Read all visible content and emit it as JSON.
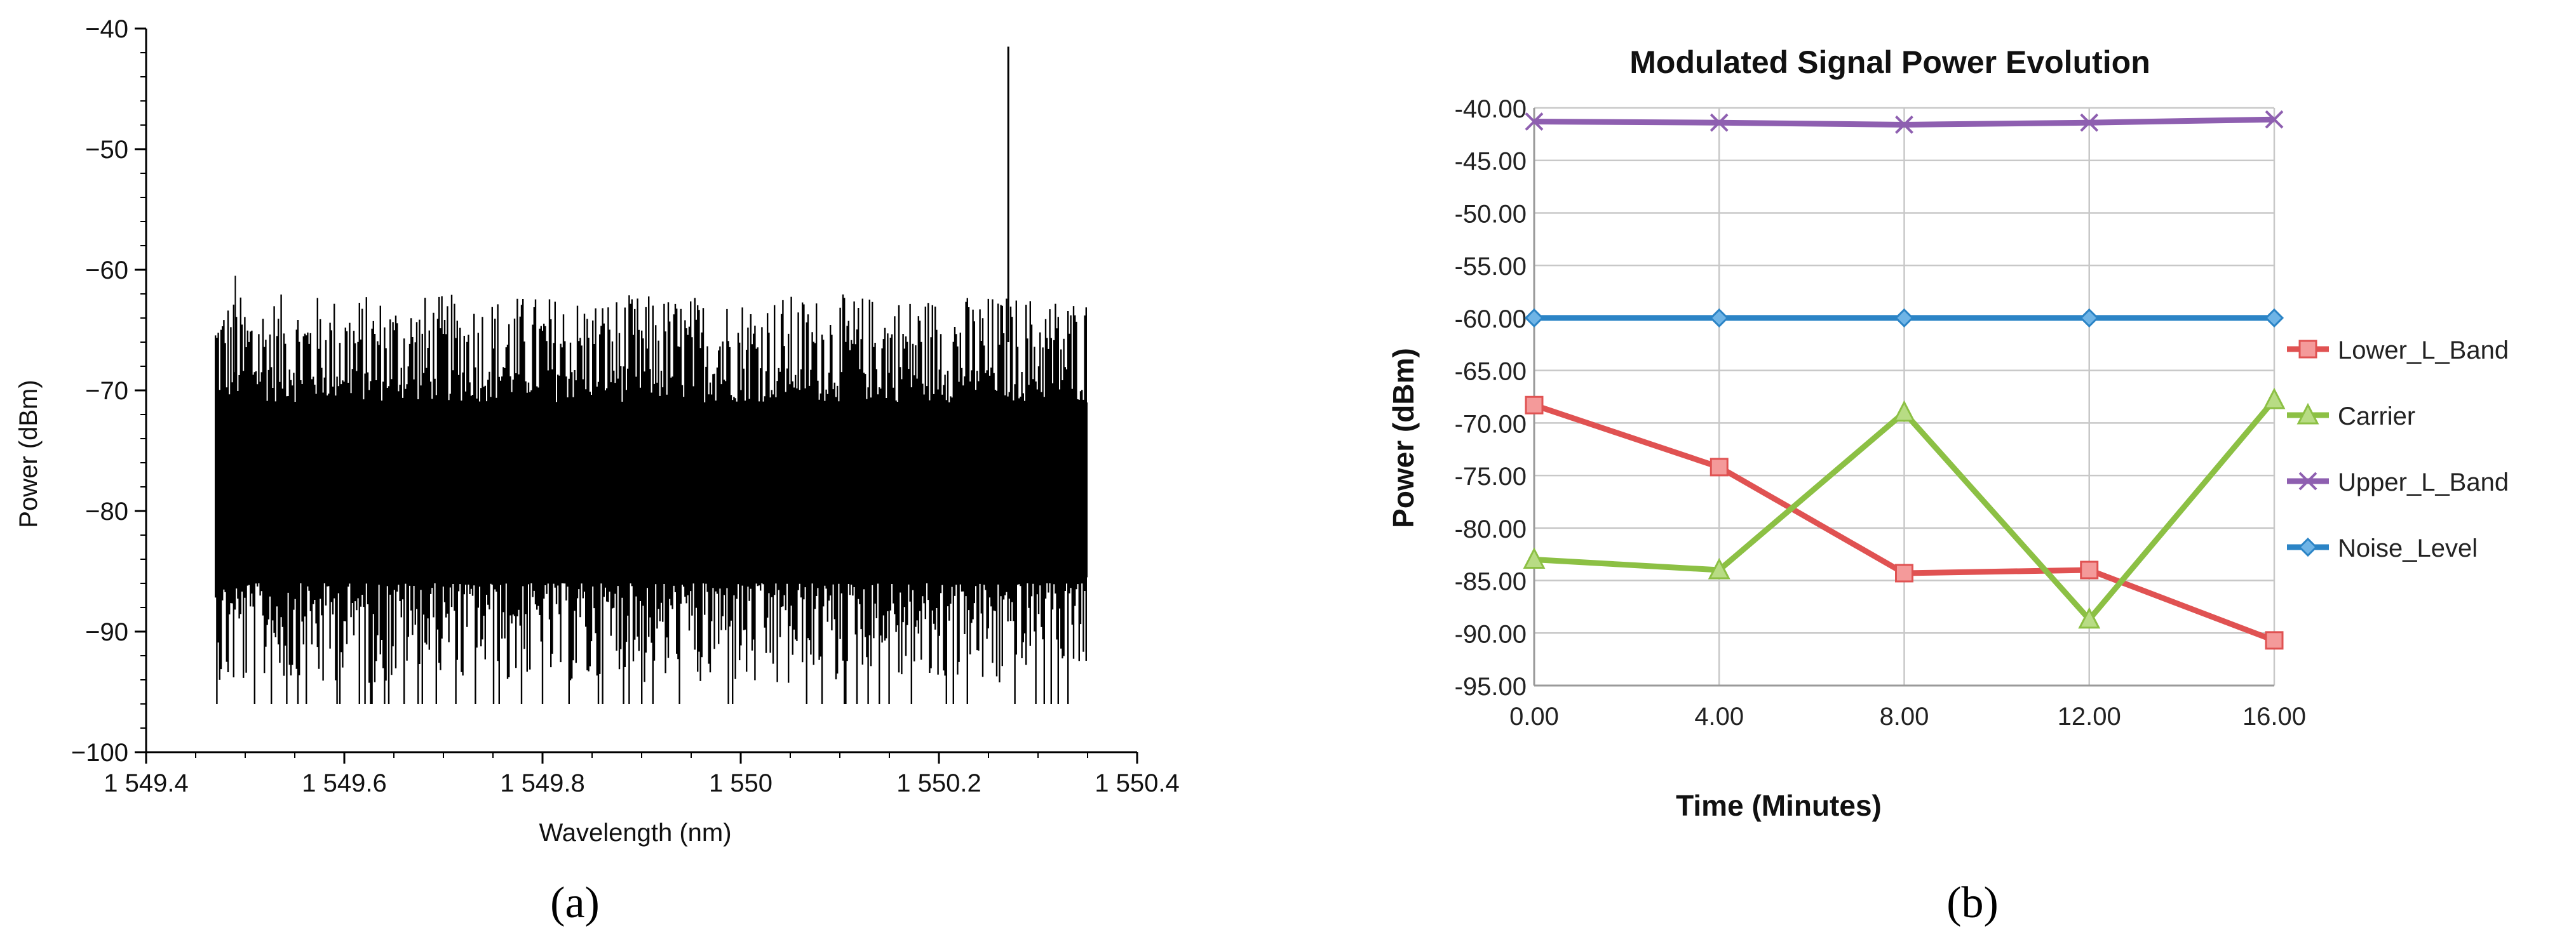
{
  "panels": [
    {
      "caption": "(a)"
    },
    {
      "caption": "(b)"
    }
  ],
  "chart_data": [
    {
      "type": "line",
      "title": "",
      "xlabel": "Wavelength (nm)",
      "ylabel": "Power (dBm)",
      "xlim": [
        1549.4,
        1550.4
      ],
      "ylim": [
        -100,
        -40
      ],
      "x_ticks": [
        1549.4,
        1549.6,
        1549.8,
        1550.0,
        1550.2,
        1550.4
      ],
      "x_tick_labels": [
        "1 549.4",
        "1 549.6",
        "1 549.8",
        "1 550",
        "1 550.2",
        "1 550.4"
      ],
      "y_ticks": [
        -100,
        -90,
        -80,
        -70,
        -60,
        -50,
        -40
      ],
      "y_tick_labels": [
        "−100",
        "−90",
        "−80",
        "−70",
        "−60",
        "−50",
        "−40"
      ],
      "grid": false,
      "legend": "none",
      "color": "#000000",
      "spectrum": {
        "x_start": 1549.47,
        "x_end": 1550.35,
        "upper_envelope_typical": -66,
        "upper_envelope_max": -62,
        "lower_envelope_typical": -88,
        "lower_envelope_min": -96,
        "peak": {
          "x": 1550.27,
          "y": -41.5
        }
      }
    },
    {
      "type": "line",
      "title": "Modulated Signal Power Evolution",
      "xlabel": "Time (Minutes)",
      "ylabel": "Power (dBm)",
      "x": [
        0,
        4,
        8,
        12,
        16
      ],
      "x_tick_labels": [
        "0.00",
        "4.00",
        "8.00",
        "12.00",
        "16.00"
      ],
      "xlim": [
        0,
        16
      ],
      "ylim": [
        -95,
        -40
      ],
      "y_ticks": [
        -95,
        -90,
        -85,
        -80,
        -75,
        -70,
        -65,
        -60,
        -55,
        -50,
        -45,
        -40
      ],
      "y_tick_labels": [
        "-95.00",
        "-90.00",
        "-85.00",
        "-80.00",
        "-75.00",
        "-70.00",
        "-65.00",
        "-60.00",
        "-55.00",
        "-50.00",
        "-45.00",
        "-40.00"
      ],
      "grid": true,
      "legend": "right",
      "series": [
        {
          "name": "Lower_L_Band",
          "values": [
            -68.3,
            -74.2,
            -84.3,
            -84.0,
            -90.7
          ],
          "color": "#e05252",
          "marker": "square"
        },
        {
          "name": "Carrier",
          "values": [
            -83.0,
            -84.0,
            -69.0,
            -88.7,
            -67.8
          ],
          "color": "#8cc044",
          "marker": "triangle"
        },
        {
          "name": "Upper_L_Band",
          "values": [
            -41.3,
            -41.4,
            -41.6,
            -41.4,
            -41.1
          ],
          "color": "#8e5fb0",
          "marker": "x"
        },
        {
          "name": "Noise_Level",
          "values": [
            -60.0,
            -60.0,
            -60.0,
            -60.0,
            -60.0
          ],
          "color": "#2b84c6",
          "marker": "diamond"
        }
      ]
    }
  ]
}
